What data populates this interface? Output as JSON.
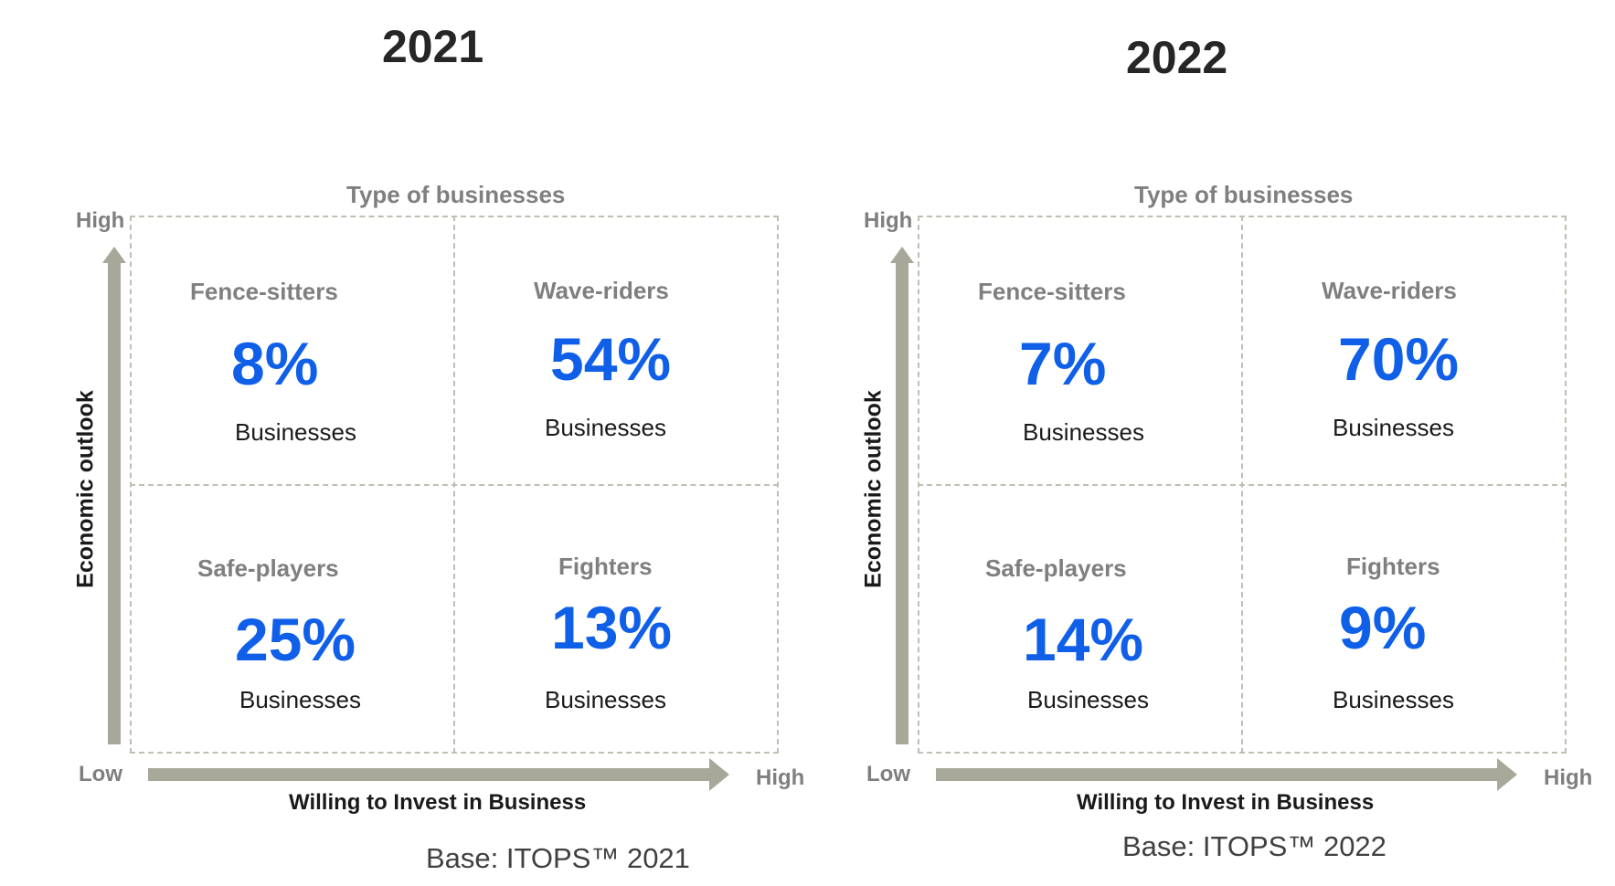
{
  "panels": [
    {
      "year": "2021",
      "type_title": "Type of businesses",
      "y_axis": {
        "label": "Economic outlook",
        "high": "High",
        "low": "Low"
      },
      "x_axis": {
        "label": "Willing to Invest in Business",
        "high": "High"
      },
      "base": "Base: ITOPS™ 2021",
      "quadrants": {
        "fence_sitters": {
          "name": "Fence-sitters",
          "value": "8%",
          "sub": "Businesses"
        },
        "wave_riders": {
          "name": "Wave-riders",
          "value": "54%",
          "sub": "Businesses"
        },
        "safe_players": {
          "name": "Safe-players",
          "value": "25%",
          "sub": "Businesses"
        },
        "fighters": {
          "name": "Fighters",
          "value": "13%",
          "sub": "Businesses"
        }
      }
    },
    {
      "year": "2022",
      "type_title": "Type of businesses",
      "y_axis": {
        "label": "Economic outlook",
        "high": "High",
        "low": "Low"
      },
      "x_axis": {
        "label": "Willing to Invest in Business",
        "high": "High"
      },
      "base": "Base: ITOPS™ 2022",
      "quadrants": {
        "fence_sitters": {
          "name": "Fence-sitters",
          "value": "7%",
          "sub": "Businesses"
        },
        "wave_riders": {
          "name": "Wave-riders",
          "value": "70%",
          "sub": "Businesses"
        },
        "safe_players": {
          "name": "Safe-players",
          "value": "14%",
          "sub": "Businesses"
        },
        "fighters": {
          "name": "Fighters",
          "value": "9%",
          "sub": "Businesses"
        }
      }
    }
  ],
  "colors": {
    "accent": "#0f5fe8",
    "muted_text": "#7f7f7f",
    "arrow": "#a8a89a",
    "grid": "#bfbfb3"
  }
}
